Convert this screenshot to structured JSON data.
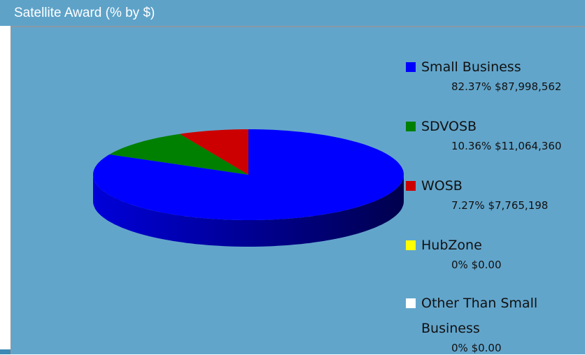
{
  "chart_data": {
    "type": "pie",
    "title": "Satellite Award (% by $)",
    "categories": [
      "Small Business",
      "SDVOSB",
      "WOSB",
      "HubZone",
      "Other Than Small Business"
    ],
    "values": [
      82.37,
      10.36,
      7.27,
      0,
      0
    ],
    "value_labels": [
      "82.37%",
      "10.36%",
      "7.27%",
      "0%",
      "0%"
    ],
    "amounts": [
      87998562,
      11064360,
      7765198,
      0,
      0
    ],
    "amount_labels": [
      "$87,998,562",
      "$11,064,360",
      "$7,765,198",
      "$0.00",
      "$0.00"
    ],
    "colors": [
      "#0000ff",
      "#008000",
      "#cc0000",
      "#ffff00",
      "#ffffff"
    ],
    "legend": "right"
  }
}
